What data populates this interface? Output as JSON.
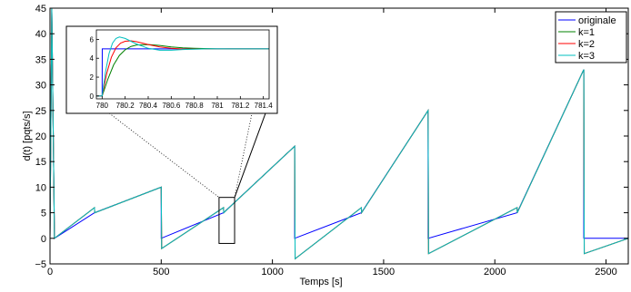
{
  "chart_data": [
    {
      "type": "line",
      "xlabel": "Temps [s]",
      "ylabel": "d(t) [pqts/s]",
      "xlim": [
        0,
        2600
      ],
      "ylim": [
        -5,
        45
      ],
      "xticks": [
        0,
        500,
        1000,
        1500,
        2000,
        2500
      ],
      "xtick_labels": [
        "0",
        "500",
        "1000",
        "1500",
        "2000",
        "2500"
      ],
      "yticks": [
        -5,
        0,
        5,
        10,
        15,
        20,
        25,
        30,
        35,
        40,
        45
      ],
      "ytick_labels": [
        "−5",
        "0",
        "5",
        "10",
        "15",
        "20",
        "25",
        "30",
        "35",
        "40",
        "45"
      ],
      "grid": false,
      "legend": "top-right",
      "series": [
        {
          "name": "originale",
          "color": "#0000ff",
          "x": [
            0,
            8,
            20,
            200,
            500,
            500,
            780,
            1100,
            1100,
            1400,
            1700,
            1700,
            2100,
            2400,
            2400,
            2600
          ],
          "y": [
            0,
            45,
            0,
            5,
            10,
            0,
            5,
            18,
            0,
            5,
            25,
            0,
            5,
            33,
            0,
            0
          ]
        },
        {
          "name": "k=1",
          "color": "#008000",
          "x": [
            0,
            8,
            20,
            200,
            201,
            500,
            502,
            780,
            781,
            1100,
            1102,
            1400,
            1401,
            1700,
            1702,
            2100,
            2101,
            2400,
            2402,
            2600
          ],
          "y": [
            0,
            45,
            0,
            6,
            5,
            10,
            -2,
            6,
            5,
            18,
            -4,
            6,
            5,
            25,
            -3,
            6,
            5,
            33,
            -3,
            0
          ]
        },
        {
          "name": "k=2",
          "color": "#ff0000",
          "x": [
            0,
            8,
            20,
            200,
            201,
            500,
            502,
            780,
            781,
            1100,
            1102,
            1400,
            1401,
            1700,
            1702,
            2100,
            2101,
            2400,
            2402,
            2600
          ],
          "y": [
            0,
            45,
            0,
            6,
            5,
            10,
            -2,
            6,
            5,
            18,
            -4,
            6,
            5,
            25,
            -3,
            6,
            5,
            33,
            -3,
            0
          ]
        },
        {
          "name": "k=3",
          "color": "#00bfbf",
          "x": [
            0,
            8,
            20,
            200,
            201,
            500,
            502,
            780,
            781,
            1100,
            1102,
            1400,
            1401,
            1700,
            1702,
            2100,
            2101,
            2400,
            2402,
            2600
          ],
          "y": [
            0,
            45,
            0,
            6,
            5,
            10,
            -2,
            6,
            5,
            18,
            -4,
            6,
            5,
            25,
            -3,
            6,
            5,
            33,
            -3,
            0
          ]
        }
      ],
      "zoom_region": {
        "xlim": [
          760,
          830
        ],
        "ylim": [
          -1,
          8
        ]
      }
    },
    {
      "type": "line",
      "xlim": [
        779.95,
        781.45
      ],
      "ylim": [
        -0.3,
        7
      ],
      "xticks": [
        780,
        780.2,
        780.4,
        780.6,
        780.8,
        781,
        781.2,
        781.4
      ],
      "xtick_labels": [
        "780",
        "780.2",
        "780.4",
        "780.6",
        "780.8",
        "781",
        "781.2",
        "781.4"
      ],
      "yticks": [
        0,
        2,
        4,
        6
      ],
      "ytick_labels": [
        "0",
        "2",
        "4",
        "6"
      ],
      "series": [
        {
          "name": "originale",
          "color": "#0000ff",
          "x": [
            779.95,
            780.0,
            780.001,
            781.45
          ],
          "y": [
            0,
            0,
            5,
            5
          ]
        },
        {
          "name": "k=1",
          "color": "#008000",
          "x": [
            779.95,
            780.0,
            780.05,
            780.1,
            780.15,
            780.2,
            780.25,
            780.3,
            780.4,
            780.5,
            780.6,
            780.7,
            780.8,
            781.0,
            781.2,
            781.45
          ],
          "y": [
            0,
            0,
            1.8,
            3.3,
            4.3,
            4.9,
            5.25,
            5.4,
            5.45,
            5.35,
            5.2,
            5.1,
            5.05,
            5.0,
            5.0,
            5.0
          ]
        },
        {
          "name": "k=2",
          "color": "#ff0000",
          "x": [
            779.95,
            780.0,
            780.04,
            780.08,
            780.12,
            780.16,
            780.2,
            780.25,
            780.3,
            780.4,
            780.5,
            780.6,
            780.7,
            780.9,
            781.1,
            781.45
          ],
          "y": [
            0,
            0,
            2.4,
            4.1,
            5.1,
            5.6,
            5.8,
            5.85,
            5.75,
            5.45,
            5.2,
            5.05,
            4.97,
            4.98,
            5.0,
            5.0
          ]
        },
        {
          "name": "k=3",
          "color": "#00bfbf",
          "x": [
            779.95,
            780.0,
            780.03,
            780.06,
            780.09,
            780.12,
            780.15,
            780.2,
            780.25,
            780.3,
            780.4,
            780.5,
            780.6,
            780.7,
            780.9,
            781.45
          ],
          "y": [
            0,
            0,
            2.6,
            4.5,
            5.6,
            6.1,
            6.25,
            6.1,
            5.8,
            5.5,
            5.05,
            4.85,
            4.85,
            4.92,
            5.0,
            5.0
          ]
        }
      ]
    }
  ]
}
